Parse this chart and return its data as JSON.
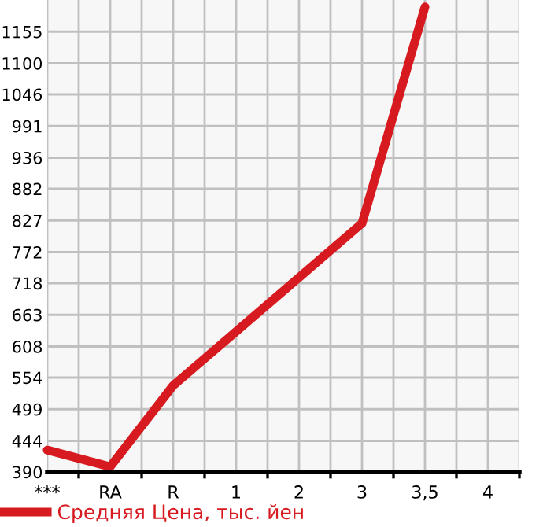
{
  "chart_data": {
    "type": "line",
    "categories": [
      "***",
      "RA",
      "R",
      "1",
      "2",
      "3",
      "3,5",
      "4"
    ],
    "series": [
      {
        "name": "Средняя Цена, тыс. йен",
        "color": "#d71a1f",
        "values": [
          428,
          399,
          540,
          634,
          728,
          822,
          1198,
          null
        ]
      }
    ],
    "ylim": [
      390,
      1210
    ],
    "yticks": [
      390,
      444,
      499,
      554,
      608,
      663,
      718,
      772,
      827,
      882,
      936,
      991,
      1046,
      1100,
      1155
    ],
    "grid": true,
    "legend": "bottom",
    "marker": "none",
    "line_style": "solid"
  }
}
